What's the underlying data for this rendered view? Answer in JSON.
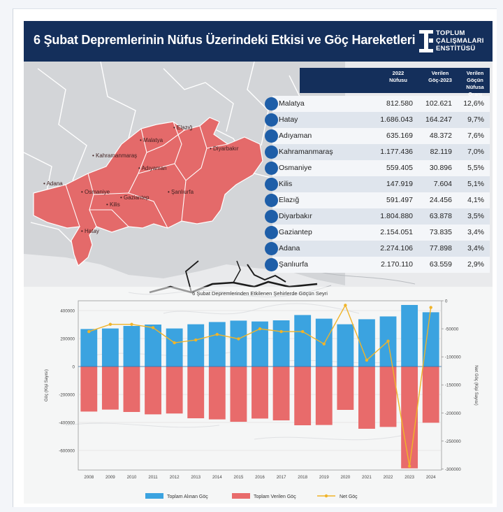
{
  "header": {
    "title": "6 Şubat Depremlerinin Nüfus Üzerindeki Etkisi ve Göç Hareketleri",
    "logo_lines": [
      "TOPLUM",
      "ÇALIŞMALARI",
      "ENSTİTÜSÜ"
    ]
  },
  "map": {
    "cities": [
      "Elazığ",
      "Malatya",
      "Diyarbakır",
      "Kahramanmaraş",
      "Adıyaman",
      "Adana",
      "Osmaniye",
      "Gaziantep",
      "Şanlıurfa",
      "Kilis",
      "Hatay"
    ]
  },
  "table": {
    "headers": [
      "2022 Nüfusu",
      "Verilen Göç-2023",
      "Verilen Göçün Nüfusa Oranı"
    ],
    "rows": [
      {
        "city": "Malatya",
        "pop": "812.580",
        "mig": "102.621",
        "ratio": "12,6%"
      },
      {
        "city": "Hatay",
        "pop": "1.686.043",
        "mig": "164.247",
        "ratio": "9,7%"
      },
      {
        "city": "Adıyaman",
        "pop": "635.169",
        "mig": "48.372",
        "ratio": "7,6%"
      },
      {
        "city": "Kahramanmaraş",
        "pop": "1.177.436",
        "mig": "82.119",
        "ratio": "7,0%"
      },
      {
        "city": "Osmaniye",
        "pop": "559.405",
        "mig": "30.896",
        "ratio": "5,5%"
      },
      {
        "city": "Kilis",
        "pop": "147.919",
        "mig": "7.604",
        "ratio": "5,1%"
      },
      {
        "city": "Elazığ",
        "pop": "591.497",
        "mig": "24.456",
        "ratio": "4,1%"
      },
      {
        "city": "Diyarbakır",
        "pop": "1.804.880",
        "mig": "63.878",
        "ratio": "3,5%"
      },
      {
        "city": "Gaziantep",
        "pop": "2.154.051",
        "mig": "73.835",
        "ratio": "3,4%"
      },
      {
        "city": "Adana",
        "pop": "2.274.106",
        "mig": "77.898",
        "ratio": "3,4%"
      },
      {
        "city": "Şanlıurfa",
        "pop": "2.170.110",
        "mig": "63.559",
        "ratio": "2,9%"
      }
    ]
  },
  "chart_data": {
    "type": "bar",
    "title": "6 Şubat Depremlerinden Etkilenen Şehirlerde Göçün Seyri",
    "categories": [
      "2008",
      "2009",
      "2010",
      "2011",
      "2012",
      "2013",
      "2014",
      "2015",
      "2016",
      "2017",
      "2018",
      "2019",
      "2020",
      "2021",
      "2022",
      "2023",
      "2024"
    ],
    "series": [
      {
        "name": "Toplam Alınan Göç",
        "type": "bar",
        "axis": "left",
        "color": "#3ba3e0",
        "values": [
          268000,
          272000,
          290000,
          300000,
          272000,
          302000,
          318000,
          328000,
          322000,
          330000,
          368000,
          342000,
          302000,
          338000,
          358000,
          440000,
          388000
        ]
      },
      {
        "name": "Toplam Verilen Göç",
        "type": "bar",
        "axis": "left",
        "color": "#e86b6b",
        "values": [
          -322000,
          -308000,
          -325000,
          -342000,
          -336000,
          -370000,
          -378000,
          -395000,
          -372000,
          -385000,
          -420000,
          -418000,
          -310000,
          -445000,
          -432000,
          -728000,
          -402000
        ]
      },
      {
        "name": "Net Göç",
        "type": "line",
        "axis": "right",
        "color": "#f0b429",
        "values": [
          -55000,
          -42000,
          -42000,
          -48000,
          -75000,
          -70000,
          -60000,
          -68000,
          -50000,
          -55000,
          -55000,
          -77000,
          -8000,
          -106000,
          -72000,
          -295000,
          -12000
        ]
      }
    ],
    "ylabel": "Göç (Kişi Sayısı)",
    "y2label": "Net Göç (Kişi Sayısı)",
    "ylim": [
      -740000,
      470000
    ],
    "y2lim": [
      -302000,
      0
    ],
    "yticks": [
      400000,
      200000,
      0,
      -200000,
      -400000,
      -600000
    ],
    "ytick_labels": [
      "400000",
      "200000",
      "0",
      "-200000",
      "-400000",
      "-600000"
    ],
    "y2ticks": [
      0,
      -50000,
      -100000,
      -150000,
      -200000,
      -250000,
      -300000
    ],
    "y2tick_labels": [
      "0",
      "-50000",
      "-100000",
      "-150000",
      "-200000",
      "-250000",
      "-300000"
    ],
    "legend": "bottom",
    "grid": true
  }
}
